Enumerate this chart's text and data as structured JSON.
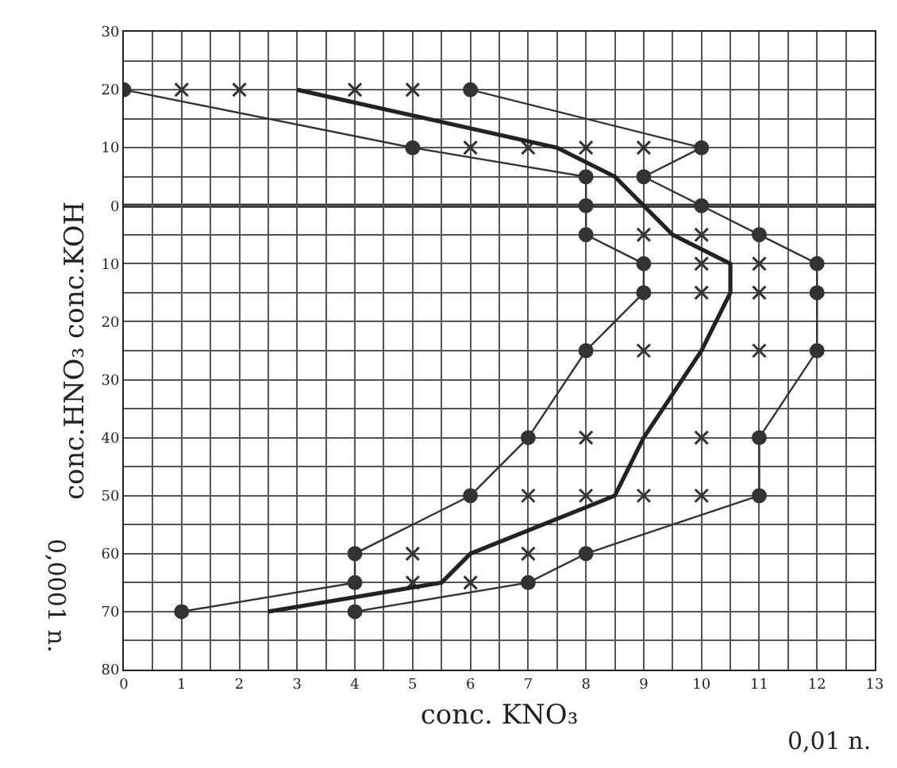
{
  "chart_data": {
    "type": "line",
    "xlabel": "conc. KNO₃",
    "ylabel": "conc.HNO₃ conc.KOH",
    "annotations": [
      "0,01 n.",
      "0,0001 n."
    ],
    "xlim": [
      0,
      13
    ],
    "xticks": [
      0,
      1,
      2,
      3,
      4,
      5,
      6,
      7,
      8,
      9,
      10,
      11,
      12,
      13
    ],
    "ylim": [
      -80,
      30
    ],
    "yticks": [
      30,
      20,
      10,
      0,
      {
        "value": -10,
        "label": "10"
      },
      {
        "value": -20,
        "label": "20"
      },
      {
        "value": -30,
        "label": "30"
      },
      {
        "value": -40,
        "label": "40"
      },
      {
        "value": -50,
        "label": "50"
      },
      {
        "value": -60,
        "label": "60"
      },
      {
        "value": -70,
        "label": "70"
      },
      {
        "value": -80,
        "label": "80"
      }
    ],
    "grid": true,
    "ref_lines": [
      {
        "axis": "y",
        "value": 0,
        "color": "#222222"
      }
    ],
    "series": [
      {
        "marker": "circle",
        "color": "#333333",
        "x": [
          0,
          5,
          8,
          8,
          8,
          9,
          9,
          8,
          7,
          6,
          4,
          4,
          1
        ],
        "values": [
          20,
          10,
          5,
          0,
          -5,
          -10,
          -15,
          -25,
          -40,
          -50,
          -60,
          -65,
          -70
        ]
      },
      {
        "marker": "circle",
        "color": "#333333",
        "x": [
          6,
          10,
          9,
          10,
          11,
          12,
          12,
          12,
          11,
          11,
          8,
          7,
          4
        ],
        "values": [
          20,
          10,
          5,
          0,
          -5,
          -10,
          -15,
          -25,
          -40,
          -50,
          -60,
          -65,
          -70
        ]
      },
      {
        "type": "scatter",
        "marker": "cross",
        "color": "#333333",
        "x": [
          1,
          2,
          4,
          5,
          6,
          7,
          8,
          9,
          9,
          10,
          10,
          11,
          10,
          11,
          9,
          11,
          8,
          10,
          7,
          8,
          9,
          10,
          5,
          7,
          5,
          6
        ],
        "values": [
          20,
          20,
          20,
          20,
          10,
          10,
          10,
          10,
          -5,
          -5,
          -10,
          -10,
          -15,
          -15,
          -25,
          -25,
          -40,
          -40,
          -50,
          -50,
          -50,
          -50,
          -60,
          -60,
          -65,
          -65
        ]
      },
      {
        "marker": "none",
        "color": "#222222",
        "x": [
          3,
          7.5,
          8.5,
          9.5,
          10.5,
          10.5,
          10,
          9,
          8.5,
          6,
          5.5,
          2.5
        ],
        "values": [
          20,
          10,
          5,
          -5,
          -10,
          -15,
          -25,
          -40,
          -50,
          -60,
          -65,
          -70
        ]
      }
    ]
  }
}
